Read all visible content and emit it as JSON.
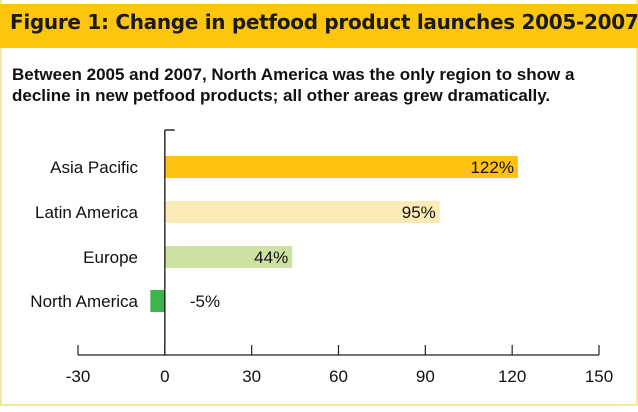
{
  "title": "Figure 1: Change in petfood product launches 2005-2007",
  "subtitle": "Between 2005 and 2007, North America was the only region to show a decline in new petfood products; all other areas grew dramatically.",
  "chart_data": {
    "type": "bar",
    "orientation": "horizontal",
    "categories": [
      "Asia Pacific",
      "Latin America",
      "Europe",
      "North America"
    ],
    "values": [
      122,
      95,
      44,
      -5
    ],
    "data_labels": [
      "122%",
      "95%",
      "44%",
      "-5%"
    ],
    "colors": [
      "#fdc20f",
      "#fdebb7",
      "#cfe1a2",
      "#3cb54a"
    ],
    "xlim": [
      -30,
      150
    ],
    "xticks": [
      -30,
      0,
      30,
      60,
      90,
      120,
      150
    ],
    "xtick_labels": [
      "-30",
      "0",
      "30",
      "60",
      "90",
      "120",
      "150"
    ],
    "grid": false,
    "title": "Figure 1: Change in petfood product launches 2005-2007"
  }
}
